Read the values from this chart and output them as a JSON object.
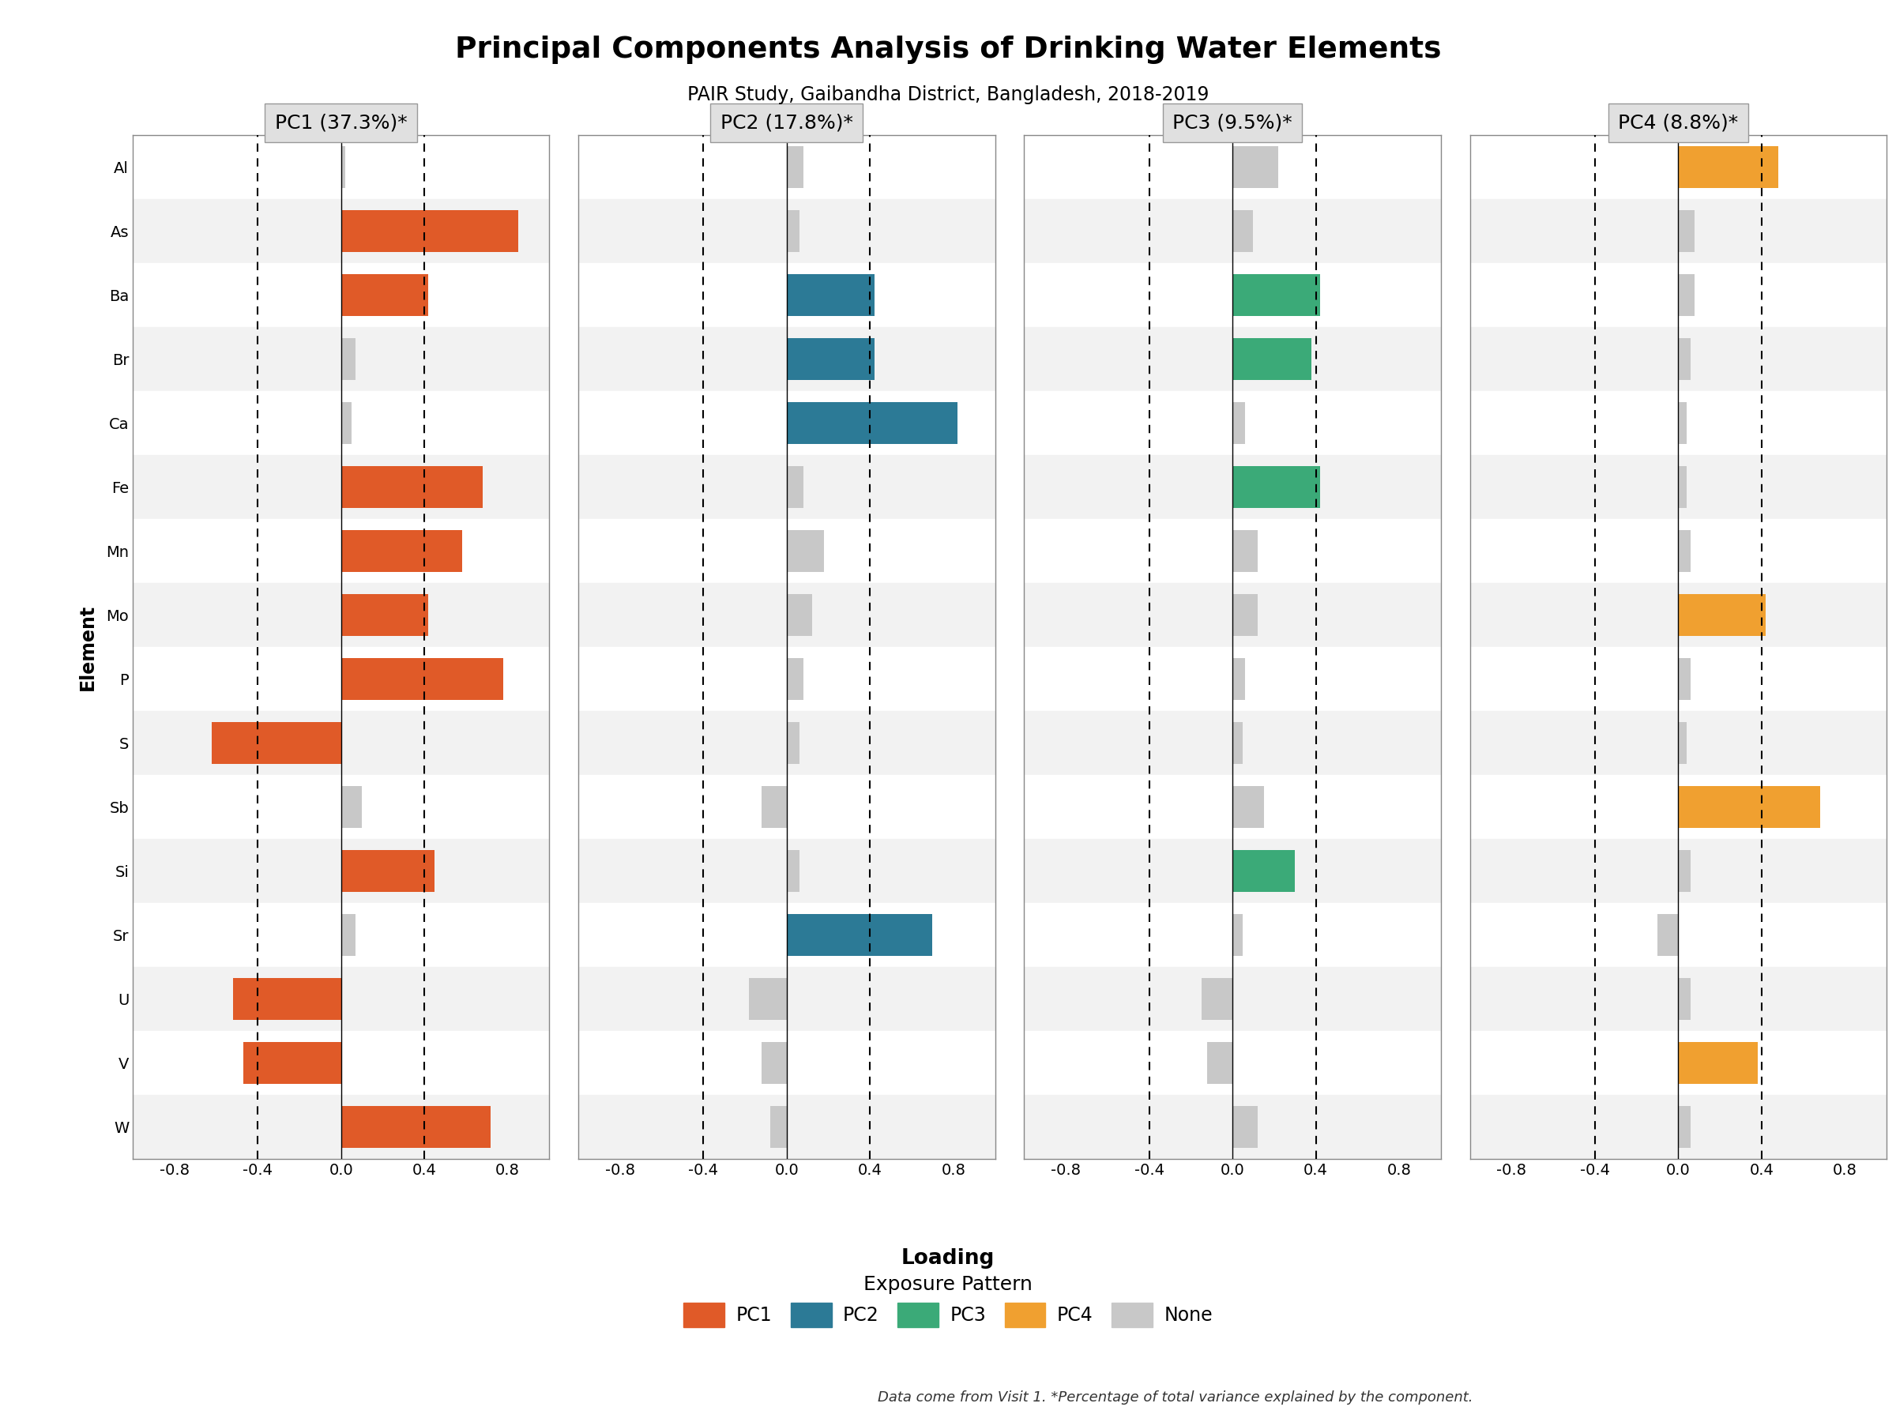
{
  "title": "Principal Components Analysis of Drinking Water Elements",
  "subtitle": "PAIR Study, Gaibandha District, Bangladesh, 2018-2019",
  "xlabel": "Loading",
  "ylabel": "Element",
  "footnote": "Data come from Visit 1. *Percentage of total variance explained by the component.",
  "elements": [
    "Al",
    "As",
    "Ba",
    "Br",
    "Ca",
    "Fe",
    "Mn",
    "Mo",
    "P",
    "S",
    "Sb",
    "Si",
    "Sr",
    "U",
    "V",
    "W"
  ],
  "pc_labels": [
    "PC1 (37.3%)*",
    "PC2 (17.8%)*",
    "PC3 (9.5%)*",
    "PC4 (8.8%)*"
  ],
  "xlim": [
    -1.0,
    1.0
  ],
  "xticks": [
    -0.8,
    -0.4,
    0.0,
    0.4,
    0.8
  ],
  "xticklabels": [
    "-0.8",
    "-0.4",
    "0.0",
    "0.4",
    "0.8"
  ],
  "dashed_lines": [
    -0.4,
    0.4
  ],
  "colors": {
    "PC1": "#E05A28",
    "PC2": "#2C7A96",
    "PC3": "#3BAA78",
    "PC4": "#F0A030",
    "None": "#C8C8C8"
  },
  "pc1_values": [
    0.02,
    0.85,
    0.42,
    0.07,
    0.05,
    0.68,
    0.58,
    0.42,
    0.78,
    -0.62,
    0.1,
    0.45,
    0.07,
    -0.52,
    -0.47,
    0.72
  ],
  "pc1_colors": [
    "None",
    "PC1",
    "PC1",
    "None",
    "None",
    "PC1",
    "PC1",
    "PC1",
    "PC1",
    "PC1",
    "None",
    "PC1",
    "None",
    "PC1",
    "PC1",
    "PC1"
  ],
  "pc2_values": [
    0.08,
    0.06,
    0.42,
    0.42,
    0.82,
    0.08,
    0.18,
    0.12,
    0.08,
    0.06,
    -0.12,
    0.06,
    0.7,
    -0.18,
    -0.12,
    -0.08
  ],
  "pc2_colors": [
    "None",
    "None",
    "PC2",
    "PC2",
    "PC2",
    "None",
    "None",
    "None",
    "None",
    "None",
    "None",
    "None",
    "PC2",
    "None",
    "None",
    "None"
  ],
  "pc3_values": [
    0.22,
    0.1,
    0.42,
    0.38,
    0.06,
    0.42,
    0.12,
    0.12,
    0.06,
    0.05,
    0.15,
    0.3,
    0.05,
    -0.15,
    -0.12,
    0.12
  ],
  "pc3_colors": [
    "None",
    "None",
    "PC3",
    "PC3",
    "None",
    "PC3",
    "None",
    "None",
    "None",
    "None",
    "None",
    "PC3",
    "None",
    "None",
    "None",
    "None"
  ],
  "pc4_values": [
    0.48,
    0.08,
    0.08,
    0.06,
    0.04,
    0.04,
    0.06,
    0.42,
    0.06,
    0.04,
    0.68,
    0.06,
    -0.1,
    0.06,
    0.38,
    0.06
  ],
  "pc4_colors": [
    "PC4",
    "None",
    "None",
    "None",
    "None",
    "None",
    "None",
    "PC4",
    "None",
    "None",
    "PC4",
    "None",
    "None",
    "None",
    "PC4",
    "None"
  ],
  "row_colors": [
    "#FFFFFF",
    "#F2F2F2",
    "#FFFFFF",
    "#F2F2F2",
    "#FFFFFF",
    "#F2F2F2",
    "#FFFFFF",
    "#F2F2F2",
    "#FFFFFF",
    "#F2F2F2",
    "#FFFFFF",
    "#F2F2F2",
    "#FFFFFF",
    "#F2F2F2",
    "#FFFFFF",
    "#F2F2F2"
  ]
}
